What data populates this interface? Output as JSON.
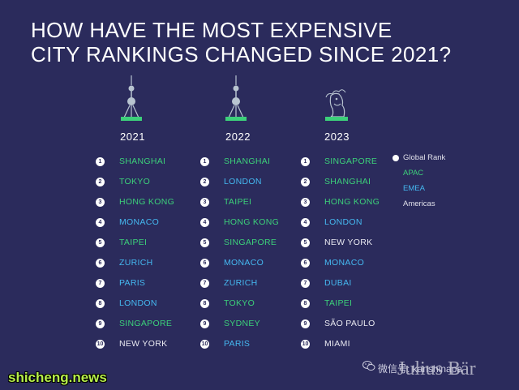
{
  "title": {
    "line1": "HOW HAVE THE MOST EXPENSIVE",
    "line2": "CITY RANKINGS CHANGED SINCE 2021?"
  },
  "colors": {
    "background": "#2b2b5c",
    "apac": "#3cd07a",
    "emea": "#45b8f0",
    "americas": "#e8e8f0"
  },
  "columns": [
    {
      "year": "2021",
      "icon": "oriental-pearl-tower-icon",
      "cities": [
        {
          "rank": "1",
          "name": "SHANGHAI",
          "region": "apac"
        },
        {
          "rank": "2",
          "name": "TOKYO",
          "region": "apac"
        },
        {
          "rank": "3",
          "name": "HONG KONG",
          "region": "apac"
        },
        {
          "rank": "4",
          "name": "MONACO",
          "region": "emea"
        },
        {
          "rank": "5",
          "name": "TAIPEI",
          "region": "apac"
        },
        {
          "rank": "6",
          "name": "ZURICH",
          "region": "emea"
        },
        {
          "rank": "7",
          "name": "PARIS",
          "region": "emea"
        },
        {
          "rank": "8",
          "name": "LONDON",
          "region": "emea"
        },
        {
          "rank": "9",
          "name": "SINGAPORE",
          "region": "apac"
        },
        {
          "rank": "10",
          "name": "NEW YORK",
          "region": "americas"
        }
      ]
    },
    {
      "year": "2022",
      "icon": "oriental-pearl-tower-icon",
      "cities": [
        {
          "rank": "1",
          "name": "SHANGHAI",
          "region": "apac"
        },
        {
          "rank": "2",
          "name": "LONDON",
          "region": "emea"
        },
        {
          "rank": "3",
          "name": "TAIPEI",
          "region": "apac"
        },
        {
          "rank": "4",
          "name": "HONG KONG",
          "region": "apac"
        },
        {
          "rank": "5",
          "name": "SINGAPORE",
          "region": "apac"
        },
        {
          "rank": "6",
          "name": "MONACO",
          "region": "emea"
        },
        {
          "rank": "7",
          "name": "ZURICH",
          "region": "emea"
        },
        {
          "rank": "8",
          "name": "TOKYO",
          "region": "apac"
        },
        {
          "rank": "9",
          "name": "SYDNEY",
          "region": "apac"
        },
        {
          "rank": "10",
          "name": "PARIS",
          "region": "emea"
        }
      ]
    },
    {
      "year": "2023",
      "icon": "merlion-icon",
      "cities": [
        {
          "rank": "1",
          "name": "SINGAPORE",
          "region": "apac"
        },
        {
          "rank": "2",
          "name": "SHANGHAI",
          "region": "apac"
        },
        {
          "rank": "3",
          "name": "HONG KONG",
          "region": "apac"
        },
        {
          "rank": "4",
          "name": "LONDON",
          "region": "emea"
        },
        {
          "rank": "5",
          "name": "NEW YORK",
          "region": "americas"
        },
        {
          "rank": "6",
          "name": "MONACO",
          "region": "emea"
        },
        {
          "rank": "7",
          "name": "DUBAI",
          "region": "emea"
        },
        {
          "rank": "8",
          "name": "TAIPEI",
          "region": "apac"
        },
        {
          "rank": "9",
          "name": "SÃO PAULO",
          "region": "americas"
        },
        {
          "rank": "10",
          "name": "MIAMI",
          "region": "americas"
        }
      ]
    }
  ],
  "legend": {
    "global_rank": "Global Rank",
    "apac": "APAC",
    "emea": "EMEA",
    "americas": "Americas"
  },
  "watermark": "shicheng.news",
  "wechat_label": "微信号: kanshinapa",
  "brand": "Julius Bär"
}
